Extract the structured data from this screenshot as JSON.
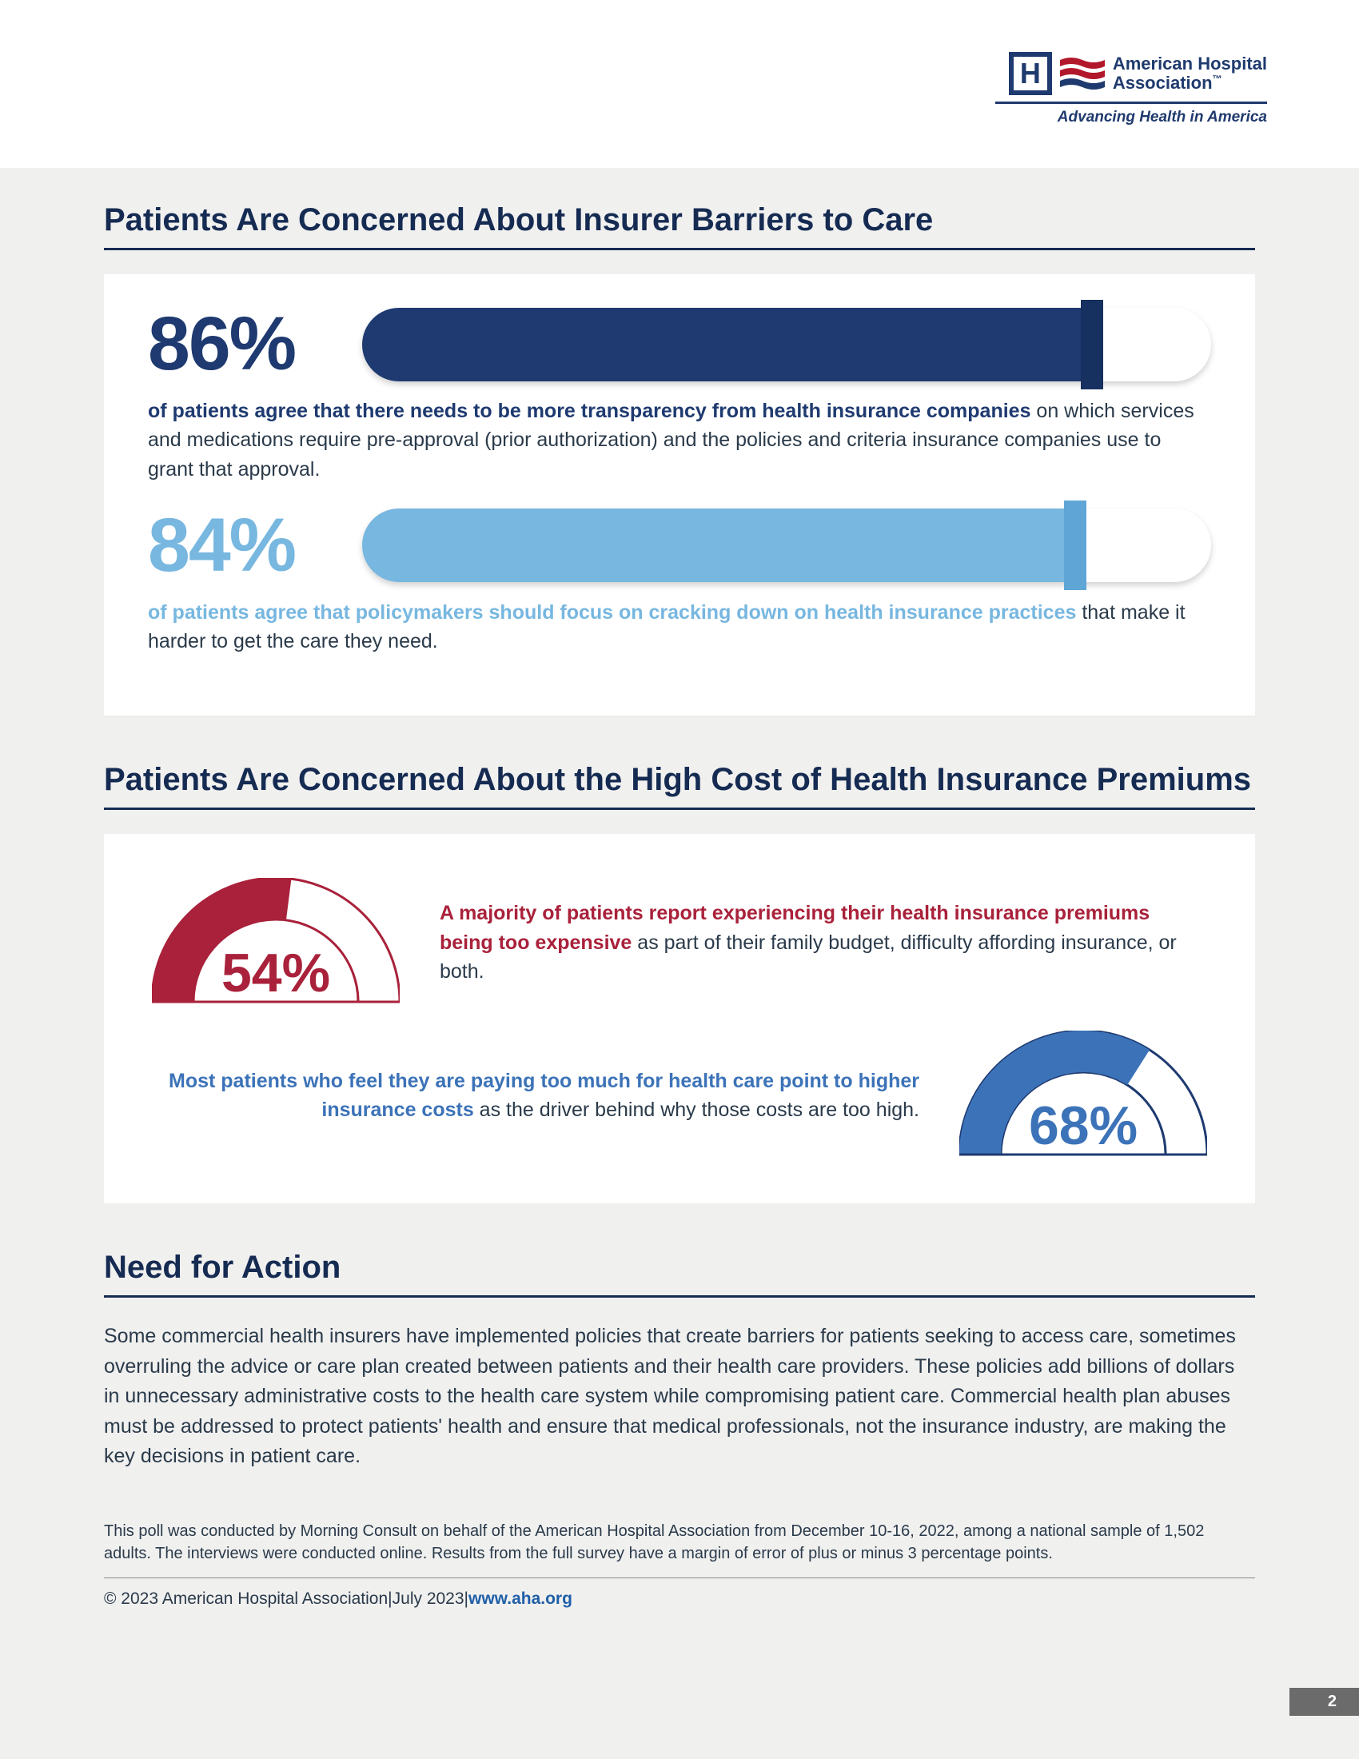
{
  "logo": {
    "name_line1": "American Hospital",
    "name_line2": "Association",
    "tagline": "Advancing Health in America",
    "border_color": "#1f3a6e",
    "flag_red": "#b2182b",
    "flag_blue": "#1f3a6e"
  },
  "section1": {
    "title": "Patients Are Concerned About Insurer Barriers to Care",
    "title_color": "#152b52",
    "bars": [
      {
        "pct_label": "86%",
        "pct_value": 86,
        "color": "#1e3a70",
        "cap_color": "#16305f",
        "desc_bold": "of patients agree that there needs to be more transparency from health insurance companies",
        "desc_rest": " on which services and medications require pre-approval (prior authorization) and the policies and criteria insurance companies use to grant that approval."
      },
      {
        "pct_label": "84%",
        "pct_value": 84,
        "color": "#77b7e0",
        "cap_color": "#5fa6d6",
        "desc_bold": "of patients agree that policymakers should focus on cracking down on health insurance practices",
        "desc_rest": " that make it harder to get the care they need."
      }
    ]
  },
  "section2": {
    "title": "Patients Are Concerned About the High Cost of Health Insurance Premiums",
    "gauges": [
      {
        "pct_label": "54%",
        "pct_value": 54,
        "fill_color": "#a9213a",
        "track_color": "#ffffff",
        "stroke_color": "#a9213a",
        "label_color": "#a9213a",
        "text_bold": "A majority of patients report experiencing their health insurance premiums being too expensive",
        "text_rest": " as part of their family budget, difficulty affording insurance, or both.",
        "text_bold_color": "#a9213a"
      },
      {
        "pct_label": "68%",
        "pct_value": 68,
        "fill_color": "#3c73b8",
        "track_color": "#ffffff",
        "stroke_color": "#1e3a70",
        "label_color": "#3c73b8",
        "text_bold": "Most patients who feel they are paying too much for health care point to higher insurance costs",
        "text_rest": " as the driver behind why those costs are too high.",
        "text_bold_color": "#3c73b8"
      }
    ]
  },
  "section3": {
    "title": "Need for Action",
    "paragraph": "Some commercial health insurers have implemented policies that create barriers for patients seeking to access care, sometimes overruling the advice or care plan created between patients and their health care providers. These policies add billions of dollars in unnecessary administrative costs to the health care system while compromising patient care. Commercial health plan abuses must be addressed to protect patients' health and ensure that medical professionals, not the insurance industry, are making the key decisions in patient care."
  },
  "footer": {
    "poll_note": "This poll was conducted by Morning Consult on behalf of the American Hospital Association from December 10-16, 2022, among a national sample of 1,502 adults. The interviews were conducted online. Results from the full survey have a margin of error of plus or minus 3 percentage points.",
    "copyright": "© 2023 American Hospital Association",
    "date": "July 2023",
    "url": "www.aha.org",
    "page": "2",
    "sep": "   |   "
  },
  "layout": {
    "gauge_outer_r": 155,
    "gauge_thickness": 52
  }
}
